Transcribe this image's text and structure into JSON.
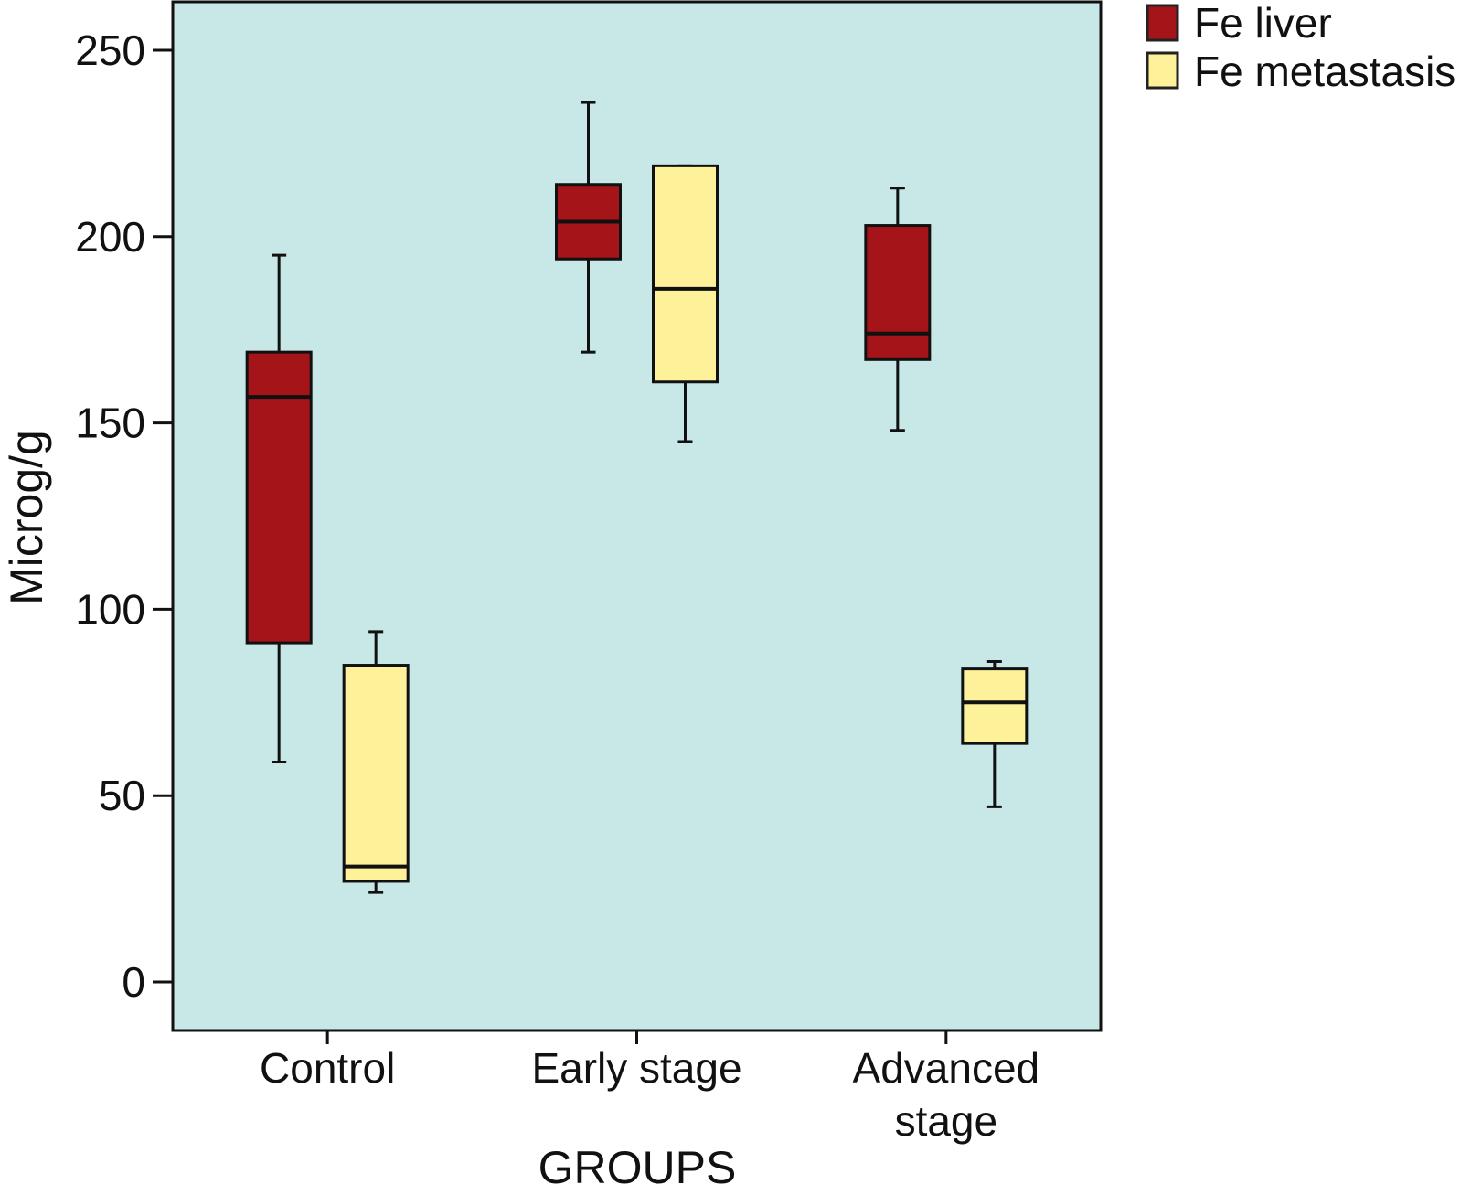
{
  "chart_data": {
    "type": "box",
    "xlabel": "GROUPS",
    "ylabel": "Microg/g",
    "ylim": [
      -13,
      263
    ],
    "yticks": [
      0,
      50,
      100,
      150,
      200,
      250
    ],
    "categories": [
      [
        "Control"
      ],
      [
        "Early stage"
      ],
      [
        "Advanced",
        "stage"
      ]
    ],
    "legend_position": "top-right, outside plot",
    "plot_background": "#c8e8e8",
    "grid": false,
    "series": [
      {
        "name": "Fe liver",
        "color": "#a51419",
        "boxes": [
          {
            "whisker_low": 59,
            "q1": 91,
            "median": 157,
            "q3": 169,
            "whisker_high": 195
          },
          {
            "whisker_low": 169,
            "q1": 194,
            "median": 204,
            "q3": 214,
            "whisker_high": 236
          },
          {
            "whisker_low": 148,
            "q1": 167,
            "median": 174,
            "q3": 203,
            "whisker_high": 213
          }
        ]
      },
      {
        "name": "Fe metastasis",
        "color": "#fdf19a",
        "boxes": [
          {
            "whisker_low": 24,
            "q1": 27,
            "median": 31,
            "q3": 85,
            "whisker_high": 94
          },
          {
            "whisker_low": 145,
            "q1": 161,
            "median": 186,
            "q3": 219,
            "whisker_high": 219
          },
          {
            "whisker_low": 47,
            "q1": 64,
            "median": 75,
            "q3": 84,
            "whisker_high": 86
          }
        ]
      }
    ]
  }
}
